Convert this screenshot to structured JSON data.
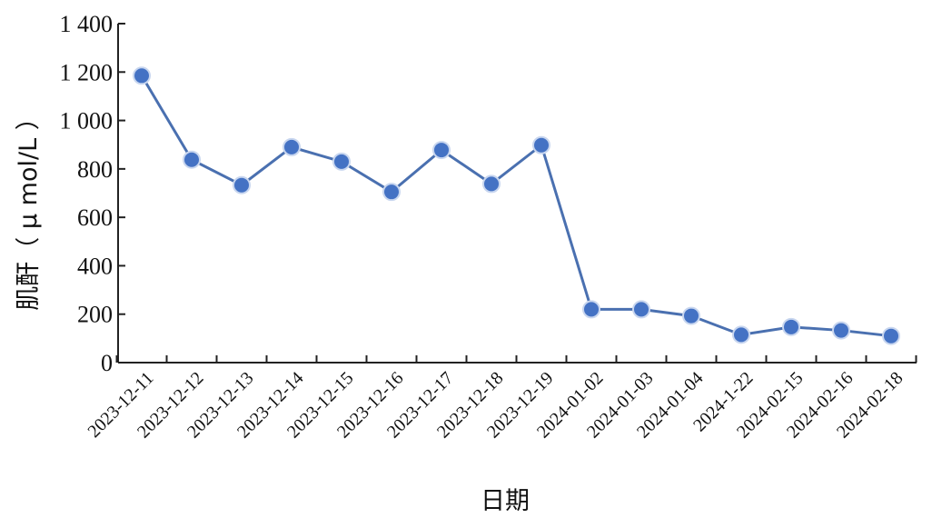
{
  "chart_data": {
    "type": "line",
    "categories": [
      "2023-12-11",
      "2023-12-12",
      "2023-12-13",
      "2023-12-14",
      "2023-12-15",
      "2023-12-16",
      "2023-12-17",
      "2023-12-18",
      "2023-12-19",
      "2024-01-02",
      "2024-01-03",
      "2024-01-04",
      "2024-1-22",
      "2024-02-15",
      "2024-02-16",
      "2024-02-18"
    ],
    "series": [
      {
        "values": [
          1185,
          838,
          733,
          890,
          830,
          705,
          878,
          738,
          898,
          220,
          220,
          193,
          115,
          147,
          133,
          110
        ]
      }
    ],
    "xlabel": "日期",
    "ylabel": "肌酐（ μ mol/L ）",
    "ylim": [
      0,
      1400
    ],
    "yticks": [
      0,
      200,
      400,
      600,
      800,
      1000,
      1200,
      1400
    ],
    "ytick_labels": [
      "0",
      "200",
      "400",
      "600",
      "800",
      "1 000",
      "1 200",
      "1 400"
    ],
    "grid": false,
    "colors": {
      "line": "#4a70b0",
      "marker": "#4472c4"
    }
  }
}
